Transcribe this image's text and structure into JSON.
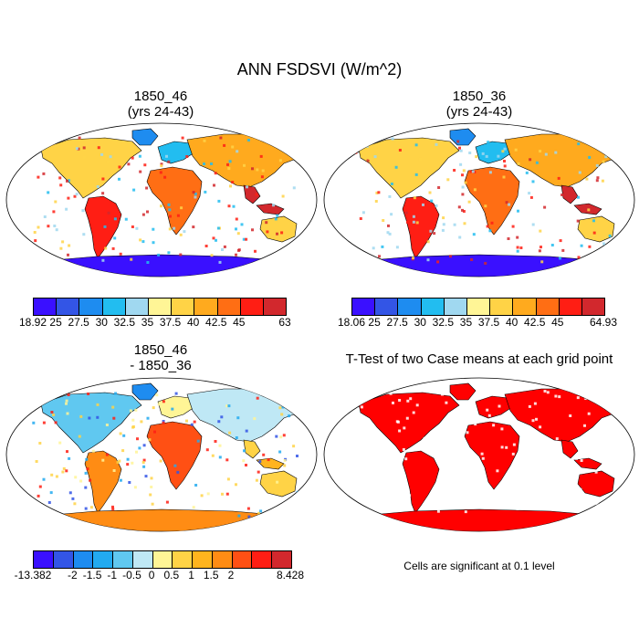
{
  "figure": {
    "title": "ANN FSDSVI (W/m^2)",
    "note": "Cells are significant at 0.1 level"
  },
  "panels": [
    {
      "id": "case1",
      "title_line1": "1850_46",
      "title_line2": "(yrs 24-43)",
      "scheme": "abs"
    },
    {
      "id": "case2",
      "title_line1": "1850_36",
      "title_line2": "(yrs 24-43)",
      "scheme": "abs"
    },
    {
      "id": "diff",
      "title_line1": "1850_46",
      "title_line2": "- 1850_36",
      "scheme": "diff"
    },
    {
      "id": "ttest",
      "title_line1": "T-Test of two Case means at each grid point",
      "title_line2": "",
      "scheme": "sig"
    }
  ],
  "colorbars": [
    {
      "id": "cbar1",
      "colors": [
        "#3a10ff",
        "#3355e6",
        "#1e8cf0",
        "#22bdf0",
        "#a0d8f0",
        "#fff596",
        "#ffd346",
        "#ffaa1e",
        "#ff6e14",
        "#ff1e14",
        "#d2282d"
      ],
      "labels": [
        "18.92",
        "25",
        "27.5",
        "30",
        "32.5",
        "35",
        "37.5",
        "40",
        "42.5",
        "45",
        "63"
      ]
    },
    {
      "id": "cbar2",
      "colors": [
        "#3a10ff",
        "#3355e6",
        "#1e8cf0",
        "#22bdf0",
        "#a0d8f0",
        "#fff596",
        "#ffd346",
        "#ffaa1e",
        "#ff6e14",
        "#ff1e14",
        "#d2282d"
      ],
      "labels": [
        "18.06",
        "25",
        "27.5",
        "30",
        "32.5",
        "35",
        "37.5",
        "40",
        "42.5",
        "45",
        "64.93"
      ]
    },
    {
      "id": "cbar3",
      "colors": [
        "#3a10ff",
        "#3355e6",
        "#1e8cf0",
        "#22aaf0",
        "#60c8f0",
        "#bfe8f5",
        "#fff596",
        "#ffd346",
        "#ffb41e",
        "#ff8c14",
        "#ff5014",
        "#ff1e14",
        "#d2282d"
      ],
      "labels": [
        "-13.382",
        "-2",
        "-1.5",
        "-1",
        "-0.5",
        "0",
        "0.5",
        "1",
        "1.5",
        "2",
        "8.428"
      ]
    }
  ],
  "palette": {
    "land_warm": "#ff6e14",
    "land_hot": "#d2282d",
    "land_mid": "#ffd346",
    "land_cool": "#1e8cf0",
    "land_cold": "#3a10ff",
    "significant": "#ff0000"
  }
}
